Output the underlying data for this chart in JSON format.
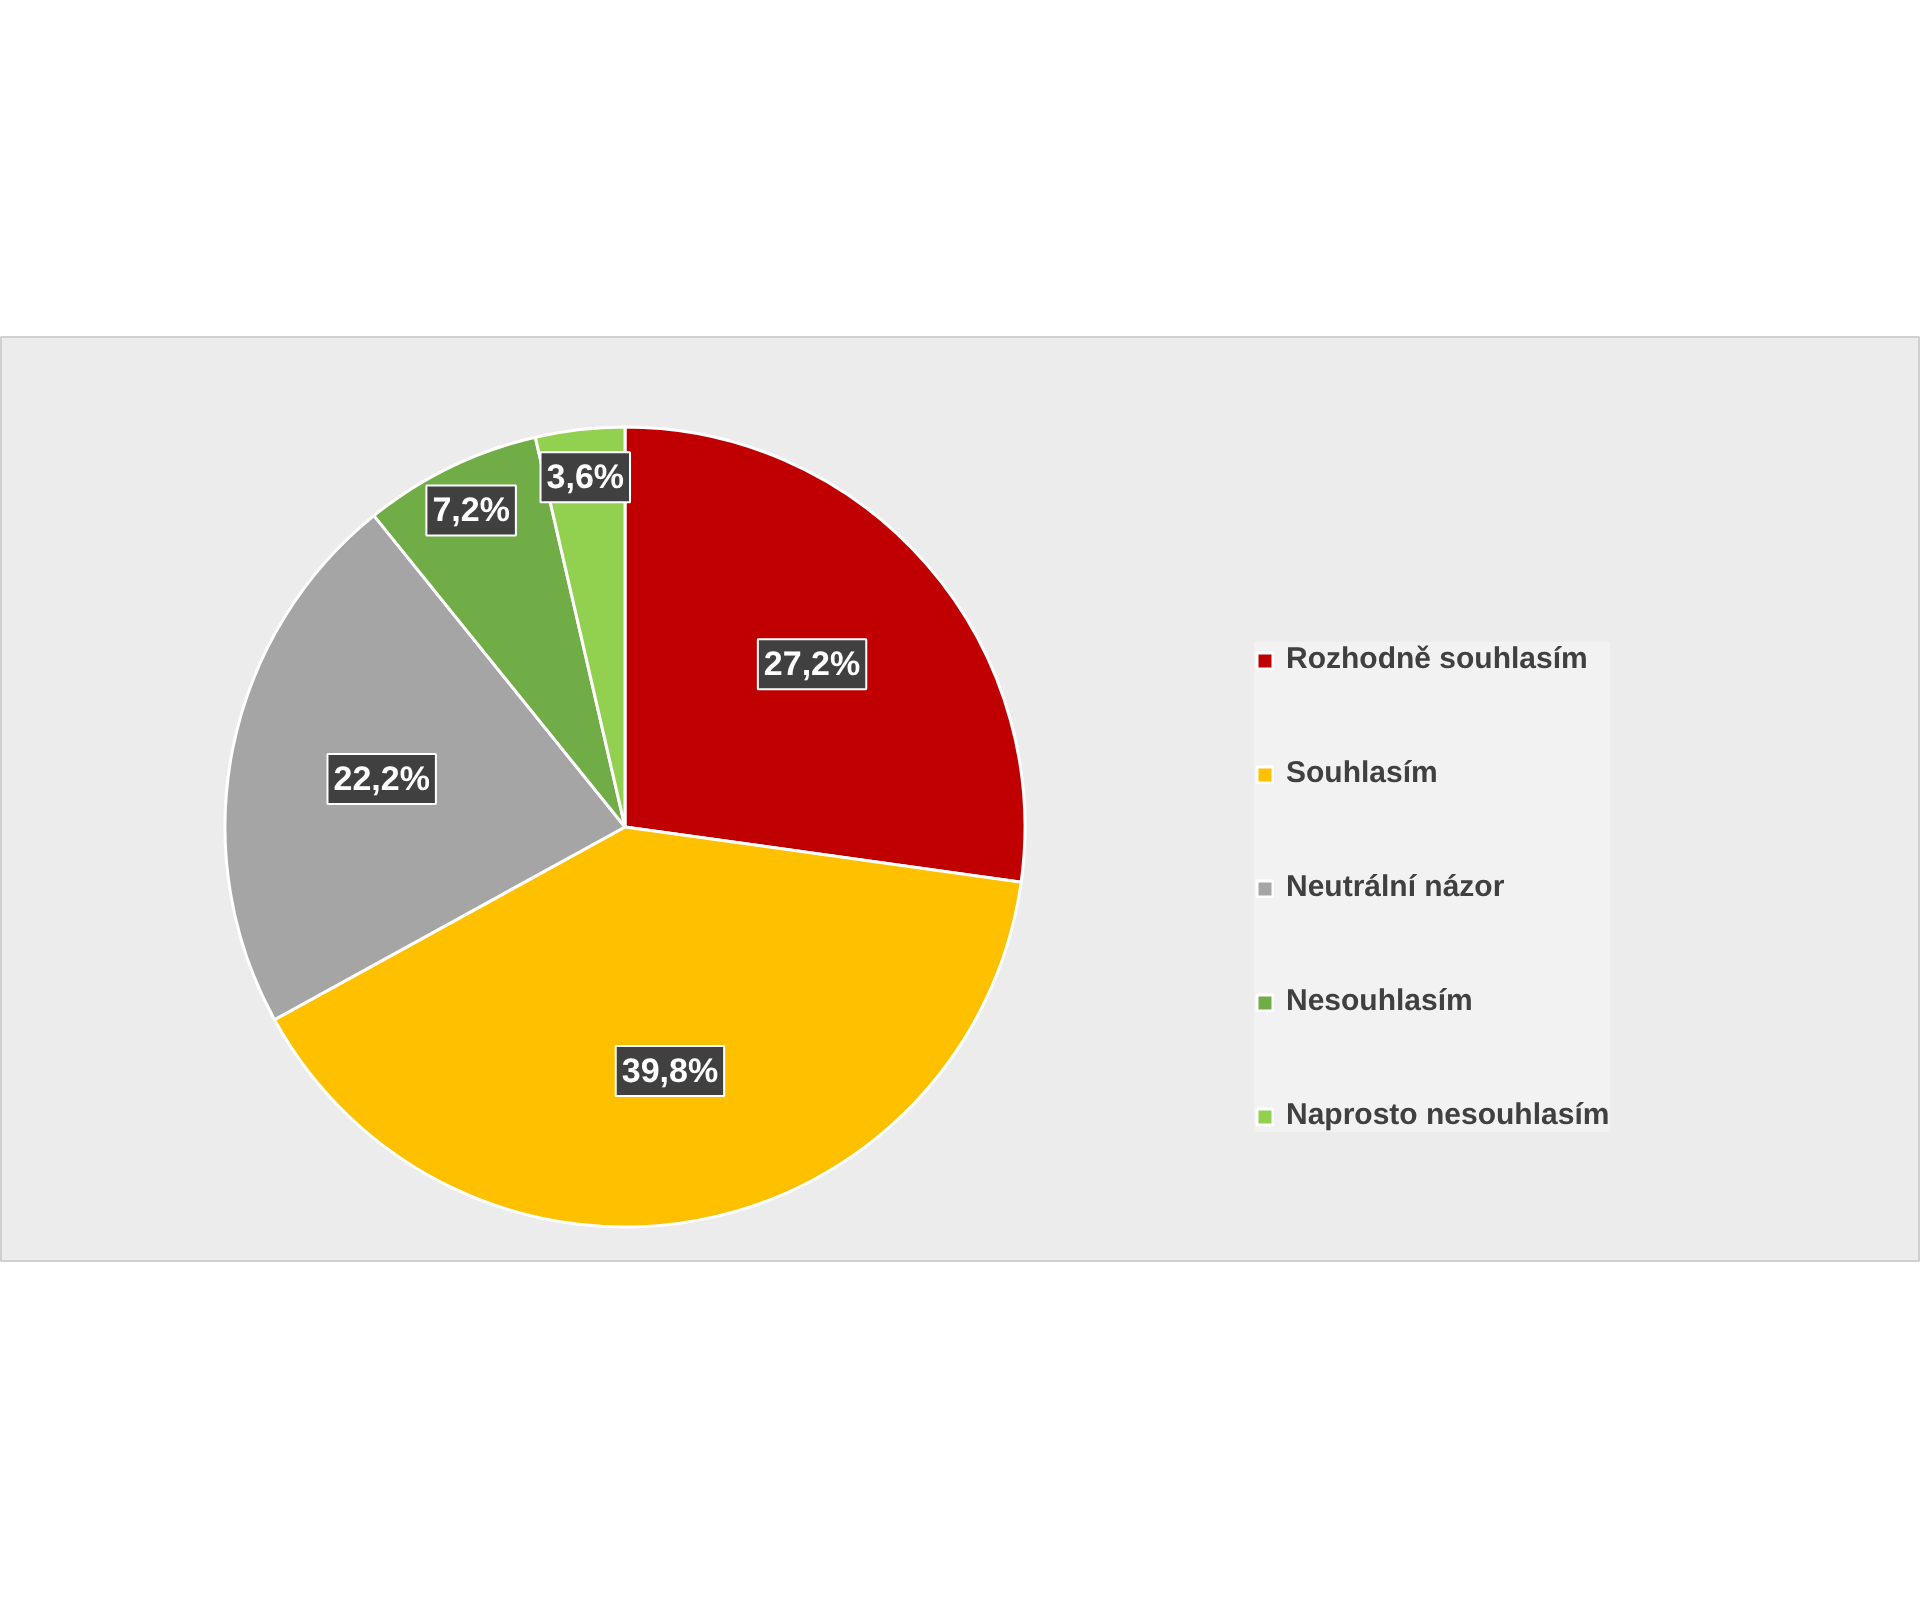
{
  "chart_data": {
    "type": "pie",
    "categories": [
      "Rozhodně souhlasím",
      "Souhlasím",
      "Neutrální názor",
      "Nesouhlasím",
      "Naprosto nesouhlasím"
    ],
    "values": [
      27.2,
      39.8,
      22.2,
      7.2,
      3.6
    ],
    "colors": [
      "#c00000",
      "#ffc000",
      "#a5a5a5",
      "#70ad47",
      "#92d050"
    ],
    "value_labels": [
      "27,2%",
      "39,8%",
      "22,2%",
      "7,2%",
      "3,6%"
    ],
    "legend": "right"
  }
}
